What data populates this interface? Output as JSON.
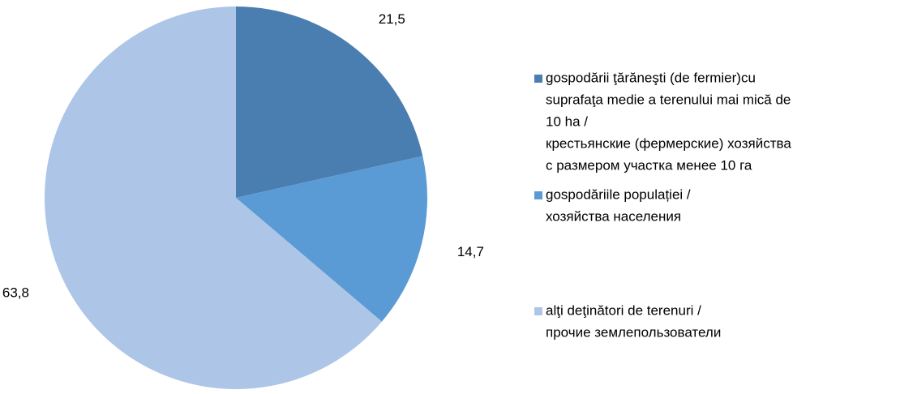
{
  "chart_data": {
    "type": "pie",
    "categories": [
      [
        "gospodării ţărăneşti (de fermier)cu",
        "suprafaţa medie a terenului mai mică de",
        "10 ha /",
        "крестьянские (фермерские) хозяйства",
        "с размером участка менее 10 га"
      ],
      [
        "gospodăriile populației /",
        " хозяйства населения"
      ],
      [
        "alţi deţinători de terenuri /",
        "прочие землепользователи"
      ]
    ],
    "values": [
      21.5,
      14.7,
      63.8
    ],
    "value_labels": [
      "21,5",
      "14,7",
      "63,8"
    ],
    "colors": [
      "#4a7eb0",
      "#5b9bd5",
      "#adc5e7"
    ],
    "legend": "right"
  }
}
